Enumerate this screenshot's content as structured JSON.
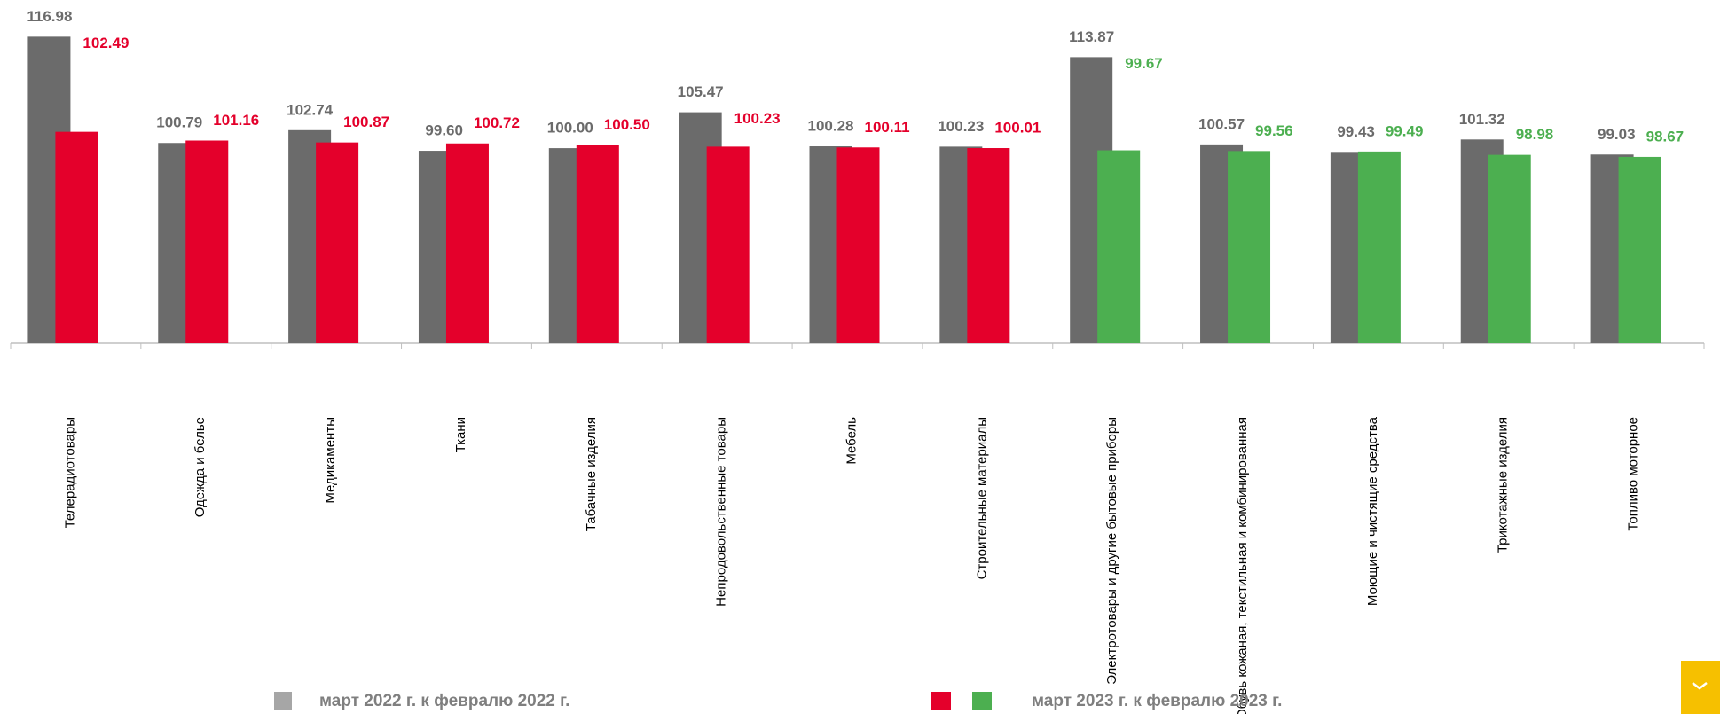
{
  "chart_data": {
    "type": "bar",
    "categories": [
      "Телерадиотовары",
      "Одежда и белье",
      "Медикаменты",
      "Ткани",
      "Табачные изделия",
      "Непродовольственные товары",
      "Мебель",
      "Строительные материалы",
      "Электротовары и другие бытовые приборы",
      "Обувь кожаная, текстильная и комбинированная",
      "Моющие и чистящие средства",
      "Трикотажные изделия",
      "Топливо моторное"
    ],
    "series": [
      {
        "name": "март 2022 г. к февралю 2022 г.",
        "color": "#6b6b6b",
        "legend_color": "#a6a6a6",
        "values": [
          116.98,
          100.79,
          102.74,
          99.6,
          100.0,
          105.47,
          100.28,
          100.23,
          113.87,
          100.57,
          99.43,
          101.32,
          99.03
        ],
        "value_labels": [
          "116.98",
          "100.79",
          "102.74",
          "99.60",
          "100.00",
          "105.47",
          "100.28",
          "100.23",
          "113.87",
          "100.57",
          "99.43",
          "101.32",
          "99.03"
        ]
      },
      {
        "name": "март 2023 г. к февралю 2023 г.",
        "legend_colors": [
          "#e4002b",
          "#4caf50"
        ],
        "colors": [
          "#e4002b",
          "#e4002b",
          "#e4002b",
          "#e4002b",
          "#e4002b",
          "#e4002b",
          "#e4002b",
          "#e4002b",
          "#4caf50",
          "#4caf50",
          "#4caf50",
          "#4caf50",
          "#4caf50"
        ],
        "values": [
          102.49,
          101.16,
          100.87,
          100.72,
          100.5,
          100.23,
          100.11,
          100.01,
          99.67,
          99.56,
          99.49,
          98.98,
          98.67
        ],
        "value_labels": [
          "102.49",
          "101.16",
          "100.87",
          "100.72",
          "100.50",
          "100.23",
          "100.11",
          "100.01",
          "99.67",
          "99.56",
          "99.49",
          "98.98",
          "98.67"
        ]
      }
    ],
    "ylim": [
      70.3,
      120
    ]
  }
}
